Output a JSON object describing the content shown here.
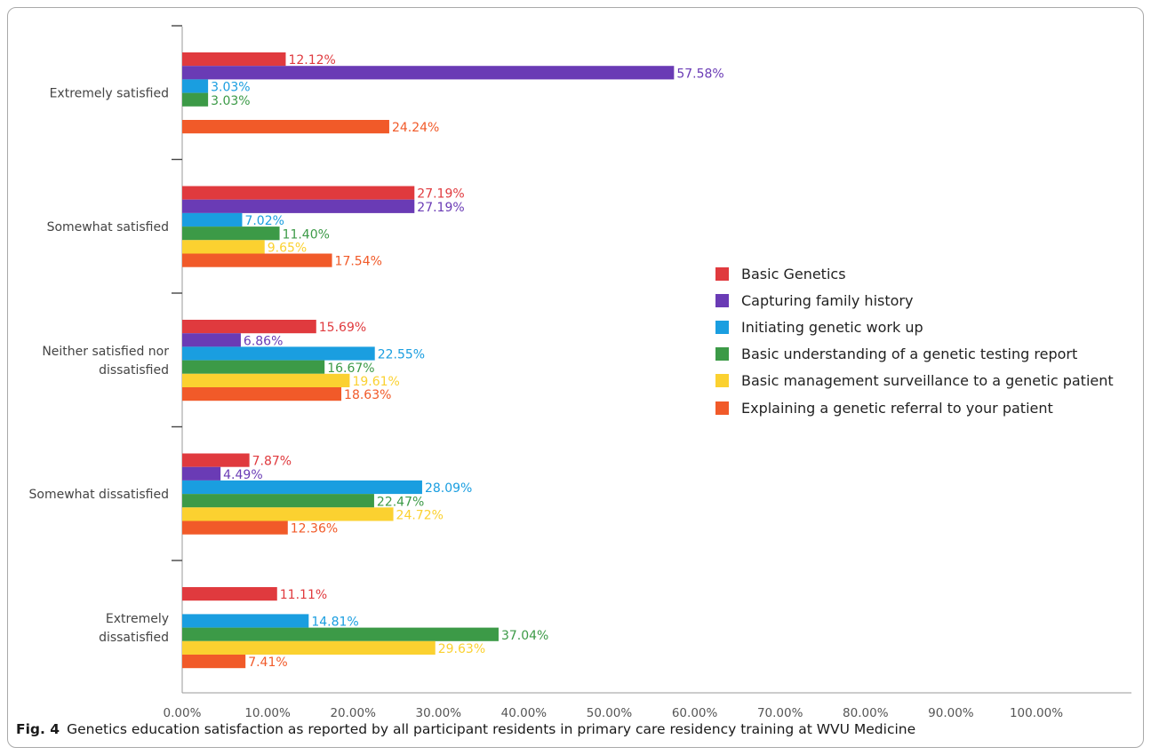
{
  "caption": {
    "fig_label": "Fig. 4",
    "text": "Genetics education satisfaction as reported by all participant residents in primary care residency training at WVU Medicine"
  },
  "chart_data": {
    "type": "bar",
    "orientation": "horizontal",
    "title": "",
    "xlabel": "",
    "ylabel": "",
    "xlim": [
      0,
      110
    ],
    "x_ticks": [
      "0.00%",
      "10.00%",
      "20.00%",
      "30.00%",
      "40.00%",
      "50.00%",
      "60.00%",
      "70.00%",
      "80.00%",
      "90.00%",
      "100.00%"
    ],
    "grid": false,
    "legend_position": "right",
    "categories": [
      [
        "Extremely satisfied"
      ],
      [
        "Somewhat satisfied"
      ],
      [
        "Neither satisfied nor",
        "dissatisfied"
      ],
      [
        "Somewhat dissatisfied"
      ],
      [
        "Extremely",
        "dissatisfied"
      ]
    ],
    "series": [
      {
        "name": "Basic Genetics",
        "color": "#e03a3e",
        "values": [
          12.12,
          27.19,
          15.69,
          7.87,
          11.11
        ]
      },
      {
        "name": "Capturing family history",
        "color": "#6a3bb5",
        "values": [
          57.58,
          27.19,
          6.86,
          4.49,
          null
        ]
      },
      {
        "name": "Initiating genetic work up",
        "color": "#1a9ee0",
        "values": [
          3.03,
          7.02,
          22.55,
          28.09,
          14.81
        ]
      },
      {
        "name": "Basic understanding of a genetic testing report",
        "color": "#3c9a47",
        "values": [
          3.03,
          11.4,
          16.67,
          22.47,
          37.04
        ]
      },
      {
        "name": "Basic management surveillance to a genetic patient",
        "color": "#fbd130",
        "values": [
          null,
          9.65,
          19.61,
          24.72,
          29.63
        ]
      },
      {
        "name": "Explaining a genetic referral to your patient",
        "color": "#f15a29",
        "values": [
          24.24,
          17.54,
          18.63,
          12.36,
          7.41
        ]
      }
    ]
  }
}
